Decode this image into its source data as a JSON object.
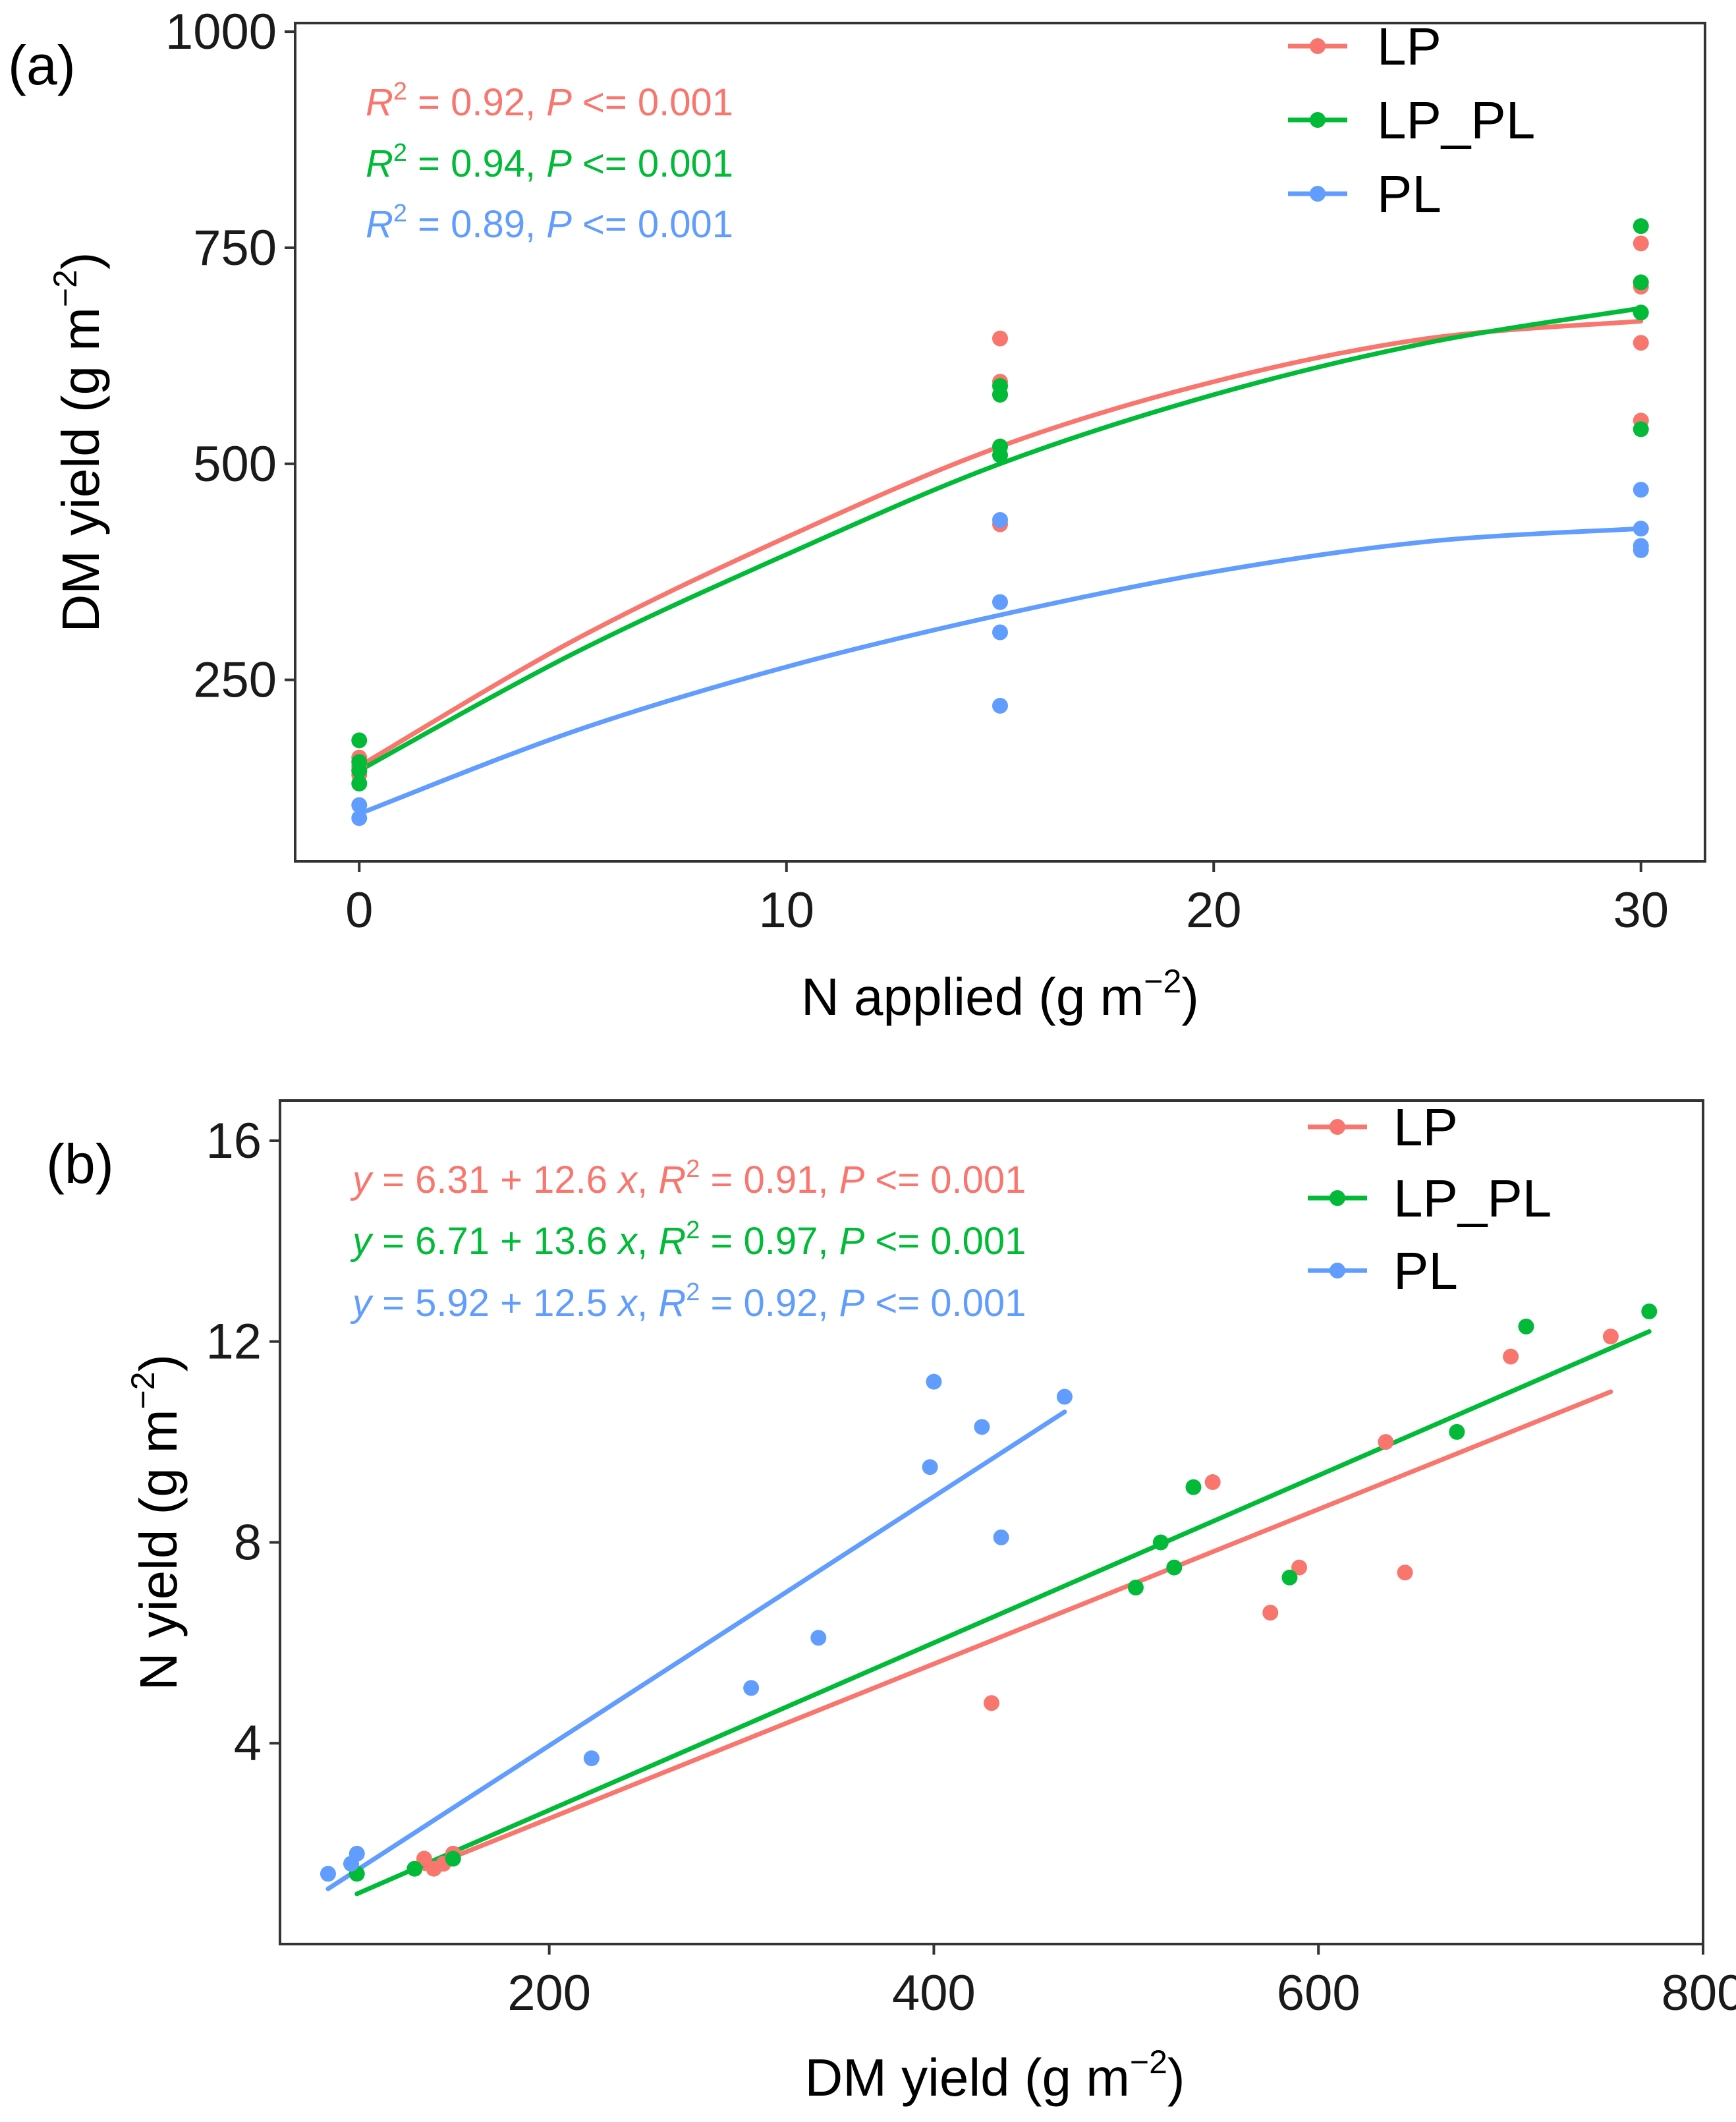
{
  "colors": {
    "LP": "#F8766D",
    "LP_PL": "#00BA38",
    "PL": "#619CFF"
  },
  "chart_data": [
    {
      "type": "scatter",
      "panel_label": "(a)",
      "xlabel": "N applied (g m",
      "xlabel_sup": "−2",
      "xlabel_close": ")",
      "ylabel": "DM yield (g m",
      "ylabel_sup": "−2",
      "ylabel_close": ")",
      "xlim": [
        -1.5,
        31.5
      ],
      "ylim": [
        40,
        1010
      ],
      "xticks": [
        0,
        10,
        20,
        30
      ],
      "yticks": [
        250,
        500,
        750,
        1000
      ],
      "legend_position": "top-right",
      "series": [
        {
          "name": "LP",
          "color": "#F8766D",
          "points": [
            [
              0,
              160
            ],
            [
              0,
              145
            ],
            [
              0,
              150
            ],
            [
              0,
              140
            ],
            [
              15,
              645
            ],
            [
              15,
              595
            ],
            [
              15,
              580
            ],
            [
              15,
              430
            ],
            [
              30,
              755
            ],
            [
              30,
              705
            ],
            [
              30,
              640
            ],
            [
              30,
              550
            ]
          ],
          "fit": [
            [
              0,
              150
            ],
            [
              5,
              295
            ],
            [
              10,
              415
            ],
            [
              15,
              520
            ],
            [
              20,
              595
            ],
            [
              25,
              645
            ],
            [
              30,
              665
            ]
          ],
          "annotation": {
            "r2_label": "R",
            "r2_sup": "2",
            "r2_value": " = 0.92, ",
            "p_label": "P",
            "p_value": " <= 0.001"
          }
        },
        {
          "name": "LP_PL",
          "color": "#00BA38",
          "points": [
            [
              0,
              180
            ],
            [
              0,
              155
            ],
            [
              0,
              145
            ],
            [
              0,
              130
            ],
            [
              15,
              590
            ],
            [
              15,
              580
            ],
            [
              15,
              520
            ],
            [
              15,
              510
            ],
            [
              30,
              775
            ],
            [
              30,
              710
            ],
            [
              30,
              675
            ],
            [
              30,
              540
            ]
          ],
          "fit": [
            [
              0,
              145
            ],
            [
              5,
              280
            ],
            [
              10,
              395
            ],
            [
              15,
              500
            ],
            [
              20,
              580
            ],
            [
              25,
              640
            ],
            [
              30,
              680
            ]
          ],
          "annotation": {
            "r2_label": "R",
            "r2_sup": "2",
            "r2_value": " = 0.94, ",
            "p_label": "P",
            "p_value": " <= 0.001"
          }
        },
        {
          "name": "PL",
          "color": "#619CFF",
          "points": [
            [
              0,
              105
            ],
            [
              0,
              90
            ],
            [
              15,
              435
            ],
            [
              15,
              340
            ],
            [
              15,
              305
            ],
            [
              15,
              220
            ],
            [
              30,
              470
            ],
            [
              30,
              425
            ],
            [
              30,
              405
            ],
            [
              30,
              400
            ]
          ],
          "fit": [
            [
              0,
              95
            ],
            [
              5,
              190
            ],
            [
              10,
              265
            ],
            [
              15,
              325
            ],
            [
              20,
              375
            ],
            [
              25,
              410
            ],
            [
              30,
              425
            ]
          ],
          "annotation": {
            "r2_label": "R",
            "r2_sup": "2",
            "r2_value": " = 0.89, ",
            "p_label": "P",
            "p_value": " <= 0.001"
          }
        }
      ]
    },
    {
      "type": "scatter",
      "panel_label": "(b)",
      "xlabel": "DM yield (g m",
      "xlabel_sup": "−2",
      "xlabel_close": ")",
      "ylabel": "N yield (g m",
      "ylabel_sup": "−2",
      "ylabel_close": ")",
      "xlim": [
        60,
        800
      ],
      "ylim": [
        0,
        16.8
      ],
      "xticks": [
        200,
        400,
        600,
        800
      ],
      "yticks": [
        4,
        8,
        12,
        16
      ],
      "legend_position": "top-right",
      "series": [
        {
          "name": "LP",
          "color": "#F8766D",
          "points": [
            [
              135,
              1.7
            ],
            [
              140,
              1.5
            ],
            [
              145,
              1.6
            ],
            [
              150,
              1.8
            ],
            [
              430,
              4.8
            ],
            [
              545,
              9.2
            ],
            [
              575,
              6.6
            ],
            [
              590,
              7.5
            ],
            [
              635,
              10.0
            ],
            [
              645,
              7.4
            ],
            [
              700,
              11.7
            ],
            [
              752,
              12.1
            ]
          ],
          "fit": [
            [
              135,
              1.5
            ],
            [
              752,
              11.0
            ]
          ],
          "annotation": {
            "y_label": "y",
            "eq": " = 6.31 + 12.6 ",
            "x_label": "x",
            "sep": ", ",
            "r2_label": "R",
            "r2_sup": "2",
            "r2_value": " = 0.91, ",
            "p_label": "P",
            "p_value": " <= 0.001"
          }
        },
        {
          "name": "LP_PL",
          "color": "#00BA38",
          "points": [
            [
              100,
              1.4
            ],
            [
              130,
              1.5
            ],
            [
              150,
              1.7
            ],
            [
              505,
              7.1
            ],
            [
              518,
              8.0
            ],
            [
              525,
              7.5
            ],
            [
              535,
              9.1
            ],
            [
              585,
              7.3
            ],
            [
              672,
              10.2
            ],
            [
              708,
              12.3
            ],
            [
              772,
              12.6
            ]
          ],
          "fit": [
            [
              100,
              1.0
            ],
            [
              772,
              12.2
            ]
          ],
          "annotation": {
            "y_label": "y",
            "eq": " = 6.71 + 13.6 ",
            "x_label": "x",
            "sep": ", ",
            "r2_label": "R",
            "r2_sup": "2",
            "r2_value": " = 0.97, ",
            "p_label": "P",
            "p_value": " <= 0.001"
          }
        },
        {
          "name": "PL",
          "color": "#619CFF",
          "points": [
            [
              85,
              1.4
            ],
            [
              97,
              1.6
            ],
            [
              100,
              1.8
            ],
            [
              222,
              3.7
            ],
            [
              305,
              5.1
            ],
            [
              340,
              6.1
            ],
            [
              398,
              9.5
            ],
            [
              400,
              11.2
            ],
            [
              425,
              10.3
            ],
            [
              435,
              8.1
            ],
            [
              468,
              10.9
            ]
          ],
          "fit": [
            [
              85,
              1.1
            ],
            [
              468,
              10.6
            ]
          ],
          "annotation": {
            "y_label": "y",
            "eq": " = 5.92 + 12.5 ",
            "x_label": "x",
            "sep": ", ",
            "r2_label": "R",
            "r2_sup": "2",
            "r2_value": " = 0.92, ",
            "p_label": "P",
            "p_value": " <= 0.001"
          }
        }
      ]
    }
  ]
}
